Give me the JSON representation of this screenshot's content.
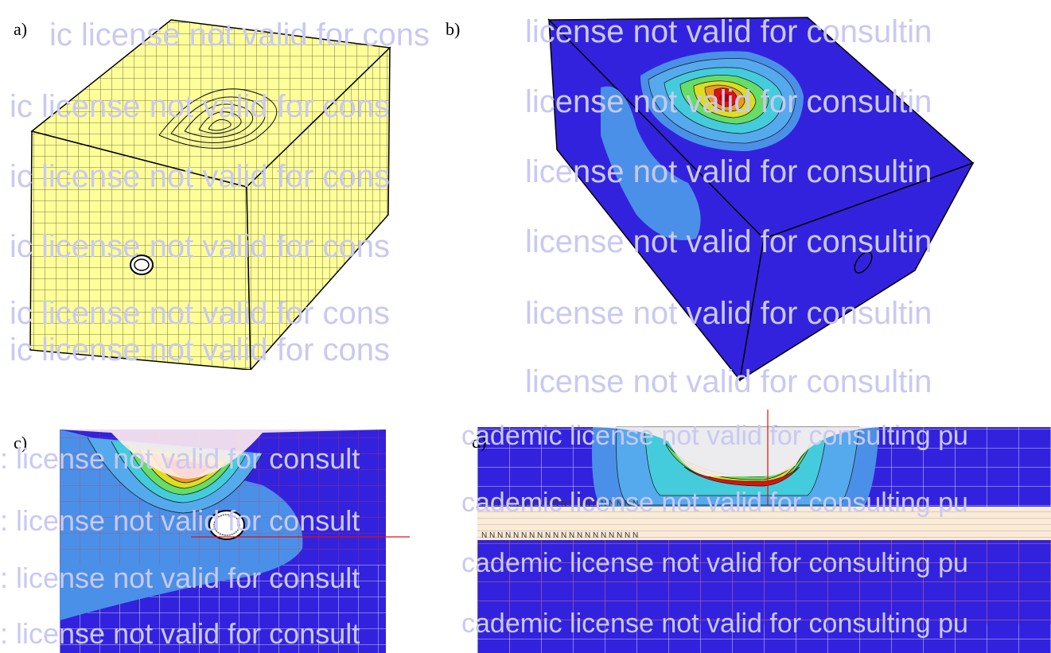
{
  "figure": {
    "panels": [
      {
        "id": "a",
        "label": "a)"
      },
      {
        "id": "b",
        "label": "b)"
      },
      {
        "id": "c",
        "label": "c)"
      },
      {
        "id": "d",
        "label": "d)"
      }
    ],
    "watermark_a": "ic license not valid for cons",
    "watermark_b": "license not valid for consultin",
    "watermark_c": ": license not valid for consult",
    "watermark_d": "cademic license not valid for consulting pu",
    "mesh_markers": "N  N  N  N  N  N  N  N  N  N  N  N  N  N  N  N  N  N  N  N",
    "colors": {
      "mesh_fill": "#ffff99",
      "background_blue": "#3322dd",
      "contour_light": "#4a90e8",
      "contour_red": "#dd1111",
      "contour_yellow": "#eeee22",
      "contour_green": "#22cc44",
      "grid_red": "#dd3333"
    }
  }
}
